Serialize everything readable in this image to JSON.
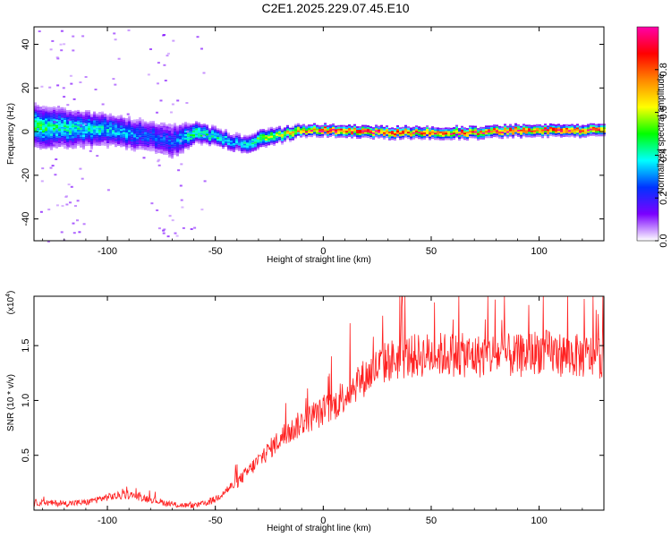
{
  "figure": {
    "title": "C2E1.2025.229.07.45.E10"
  },
  "chart_data": [
    {
      "type": "heatmap",
      "name": "spectrogram",
      "xlabel": "Height of straight line (km)",
      "ylabel": "Frequency (Hz)",
      "xlim": [
        -134,
        130
      ],
      "ylim": [
        -50,
        48
      ],
      "xticks": [
        -100,
        -50,
        0,
        50,
        100
      ],
      "yticks": [
        -40,
        -20,
        0,
        20,
        40
      ],
      "colorbar": {
        "label": "Normalized spectral amplitude",
        "range": [
          0,
          1
        ],
        "ticks": [
          0.0,
          0.2,
          0.4,
          0.6,
          0.8
        ],
        "tick_labels": [
          "0.0",
          "0.2",
          "0.4",
          "0.6",
          "0.8"
        ],
        "colormap": [
          "#ffffff",
          "#7b00ff",
          "#0033ff",
          "#00ffff",
          "#00ff00",
          "#ffff00",
          "#ff8800",
          "#ff0000",
          "#ff00aa"
        ]
      },
      "ridge": {
        "x": [
          -134,
          -120,
          -100,
          -80,
          -70,
          -60,
          -50,
          -40,
          -35,
          -30,
          -20,
          -10,
          0,
          10,
          30,
          50,
          70,
          90,
          110,
          130
        ],
        "frequency": [
          3,
          2,
          1,
          -2,
          -4,
          0,
          -2,
          -5,
          -5,
          -3,
          -1,
          1,
          1,
          1,
          0,
          0,
          0,
          1,
          1,
          1
        ],
        "amplitude": [
          0.45,
          0.4,
          0.35,
          0.25,
          0.25,
          0.45,
          0.4,
          0.3,
          0.4,
          0.5,
          0.6,
          0.75,
          0.85,
          0.9,
          0.85,
          0.8,
          0.85,
          0.85,
          0.85,
          0.8
        ],
        "spread_hz": [
          12,
          11,
          9,
          9,
          10,
          6,
          5,
          5,
          5,
          5,
          4,
          3,
          3,
          3,
          3,
          3,
          3,
          3,
          3,
          3
        ]
      }
    },
    {
      "type": "line",
      "name": "snr",
      "xlabel": "Height of straight line (km)",
      "ylabel": "SNR (10 * v/v)",
      "y_multiplier_label": "(x10",
      "y_multiplier_exp": "4",
      "line_color": "#ff2222",
      "xlim": [
        -134,
        130
      ],
      "ylim": [
        0,
        1.95
      ],
      "xticks": [
        -100,
        -50,
        0,
        50,
        100
      ],
      "yticks": [
        0.5,
        1.0,
        1.5
      ],
      "ytick_labels": [
        "0.5",
        "1.0",
        "1.5"
      ],
      "envelope": {
        "x": [
          -134,
          -120,
          -110,
          -100,
          -90,
          -80,
          -70,
          -60,
          -55,
          -50,
          -45,
          -40,
          -35,
          -30,
          -25,
          -20,
          -15,
          -10,
          -5,
          0,
          5,
          10,
          15,
          20,
          25,
          30,
          40,
          50,
          60,
          70,
          80,
          90,
          100,
          110,
          120,
          130
        ],
        "y": [
          0.07,
          0.06,
          0.07,
          0.12,
          0.14,
          0.1,
          0.05,
          0.04,
          0.06,
          0.1,
          0.18,
          0.25,
          0.35,
          0.45,
          0.55,
          0.65,
          0.72,
          0.8,
          0.85,
          0.9,
          0.95,
          1.05,
          1.15,
          1.22,
          1.3,
          1.36,
          1.4,
          1.42,
          1.42,
          1.4,
          1.42,
          1.4,
          1.45,
          1.42,
          1.4,
          1.4
        ]
      }
    }
  ]
}
